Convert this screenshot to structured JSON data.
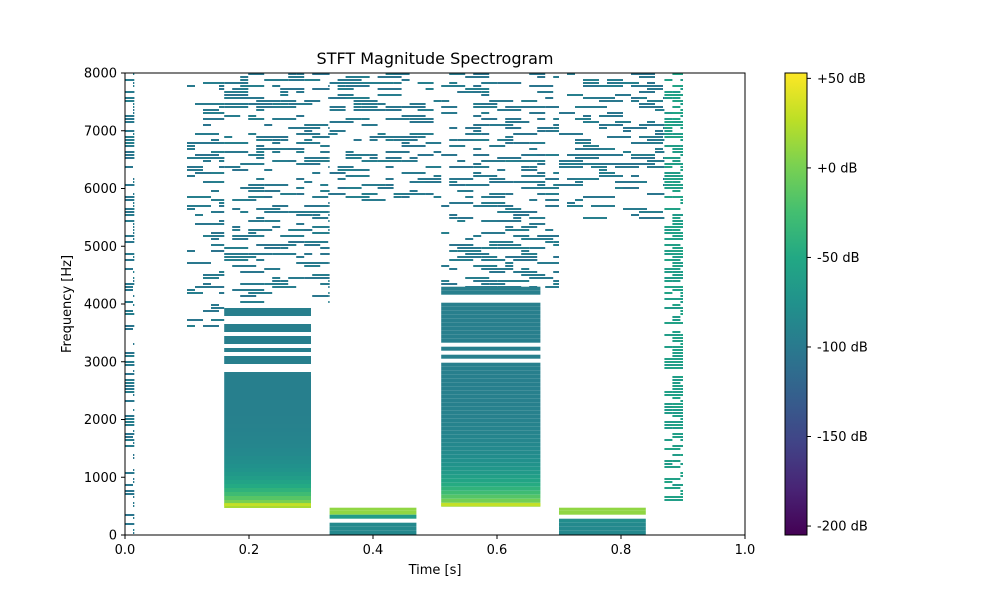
{
  "chart_data": {
    "type": "heatmap",
    "title": "STFT Magnitude Spectrogram",
    "xlabel": "Time [s]",
    "ylabel": "Frequency [Hz]",
    "xlim": [
      0,
      1.0
    ],
    "ylim": [
      0,
      8000
    ],
    "x_ticks": [
      0.0,
      0.2,
      0.4,
      0.6,
      0.8,
      1.0
    ],
    "x_tick_labels": [
      "0.0",
      "0.2",
      "0.4",
      "0.6",
      "0.8",
      "1.0"
    ],
    "y_ticks": [
      0,
      1000,
      2000,
      3000,
      4000,
      5000,
      6000,
      7000,
      8000
    ],
    "y_tick_labels": [
      "0",
      "1000",
      "2000",
      "3000",
      "4000",
      "5000",
      "6000",
      "7000",
      "8000"
    ],
    "colormap": "viridis",
    "colorbar": {
      "range_db": [
        -205,
        53
      ],
      "ticks_db": [
        50,
        0,
        -50,
        -100,
        -150,
        -200
      ],
      "tick_labels": [
        "+50 dB",
        "+0 dB",
        "-50 dB",
        "-100 dB",
        "-150 dB",
        "-200 dB"
      ]
    },
    "grid": false,
    "blocks": [
      {
        "t_start": 0.16,
        "t_end": 0.3,
        "f_low": 500,
        "f_high": 4000,
        "peak_freq": 500,
        "peak_db": 30,
        "floor_db": -95
      },
      {
        "t_start": 0.33,
        "t_end": 0.47,
        "f_low": 0,
        "f_high": 420,
        "peak_freq": 420,
        "peak_db": 10,
        "floor_db": -85
      },
      {
        "t_start": 0.51,
        "t_end": 0.67,
        "f_low": 500,
        "f_high": 4300,
        "peak_freq": 500,
        "peak_db": 30,
        "floor_db": -95
      },
      {
        "t_start": 0.7,
        "t_end": 0.84,
        "f_low": 0,
        "f_high": 420,
        "peak_freq": 420,
        "peak_db": 10,
        "floor_db": -85
      }
    ],
    "noise_columns": [
      {
        "t_start": 0.0,
        "t_end": 0.015,
        "f_low": 0,
        "f_high": 8000,
        "db": -100
      },
      {
        "t_start": 0.1,
        "t_end": 0.16,
        "f_low": 3600,
        "f_high": 8000,
        "db": -100
      },
      {
        "t_start": 0.16,
        "t_end": 0.33,
        "f_low": 4000,
        "f_high": 8000,
        "db": -100
      },
      {
        "t_start": 0.33,
        "t_end": 0.51,
        "f_low": 5800,
        "f_high": 8000,
        "db": -100
      },
      {
        "t_start": 0.51,
        "t_end": 0.7,
        "f_low": 4300,
        "f_high": 8000,
        "db": -100
      },
      {
        "t_start": 0.7,
        "t_end": 0.87,
        "f_low": 5500,
        "f_high": 8000,
        "db": -100
      },
      {
        "t_start": 0.87,
        "t_end": 0.9,
        "f_low": 500,
        "f_high": 8000,
        "db": -60
      }
    ]
  }
}
